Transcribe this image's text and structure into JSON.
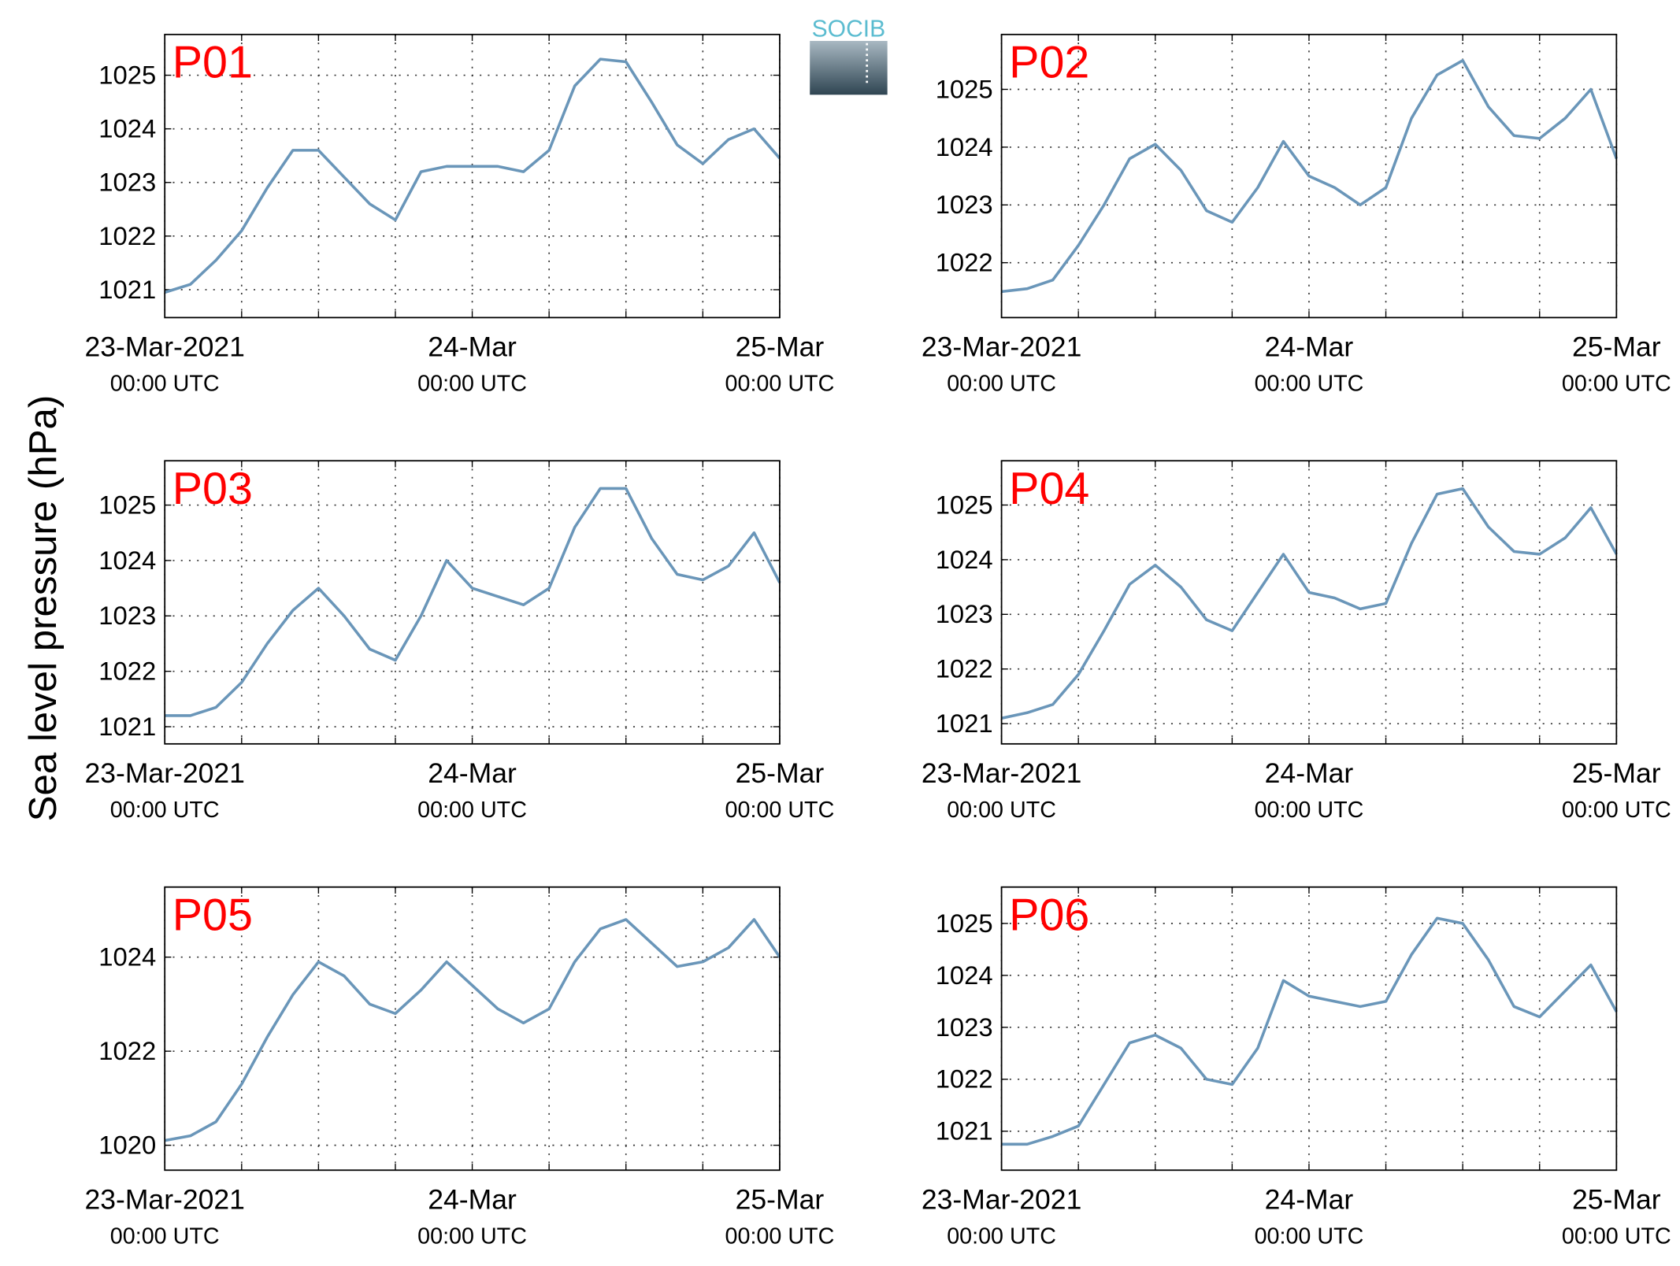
{
  "ylabel": "Sea level pressure (hPa)",
  "logo": "SOCIB",
  "chart_data": [
    {
      "type": "line",
      "title": "P01",
      "color": "#6a96b9",
      "grid": true,
      "x": [
        "2021-03-23T00:00",
        "2021-03-23T02:00",
        "2021-03-23T04:00",
        "2021-03-23T06:00",
        "2021-03-23T08:00",
        "2021-03-23T10:00",
        "2021-03-23T12:00",
        "2021-03-23T14:00",
        "2021-03-23T16:00",
        "2021-03-23T18:00",
        "2021-03-23T20:00",
        "2021-03-23T22:00",
        "2021-03-24T00:00",
        "2021-03-24T02:00",
        "2021-03-24T04:00",
        "2021-03-24T06:00",
        "2021-03-24T08:00",
        "2021-03-24T10:00",
        "2021-03-24T12:00",
        "2021-03-24T14:00",
        "2021-03-24T16:00",
        "2021-03-24T18:00",
        "2021-03-24T20:00",
        "2021-03-24T22:00",
        "2021-03-25T00:00"
      ],
      "values": [
        1020.95,
        1021.1,
        1021.55,
        1022.1,
        1022.9,
        1023.6,
        1023.6,
        1023.1,
        1022.6,
        1022.3,
        1023.2,
        1023.3,
        1023.3,
        1023.3,
        1023.2,
        1023.6,
        1024.8,
        1025.3,
        1025.25,
        1024.5,
        1023.7,
        1023.35,
        1023.8,
        1024.0,
        1023.45
      ],
      "xlim": [
        "2021-03-23T00:00",
        "2021-03-25T00:00"
      ],
      "xticks": [
        {
          "value": "2021-03-23T00:00",
          "label": "23-Mar-2021",
          "sublabel": "00:00 UTC"
        },
        "2021-03-23T06:00",
        "2021-03-23T12:00",
        "2021-03-23T18:00",
        {
          "value": "2021-03-24T00:00",
          "label": "24-Mar",
          "sublabel": "00:00 UTC"
        },
        "2021-03-24T06:00",
        "2021-03-24T12:00",
        "2021-03-24T18:00",
        {
          "value": "2021-03-25T00:00",
          "label": "25-Mar",
          "sublabel": "00:00 UTC"
        }
      ],
      "ylim": [
        1020.48,
        1025.76
      ],
      "yticks": [
        1021,
        1022,
        1023,
        1024,
        1025
      ]
    },
    {
      "type": "line",
      "title": "P02",
      "color": "#6a96b9",
      "grid": true,
      "x": [
        "2021-03-23T00:00",
        "2021-03-23T02:00",
        "2021-03-23T04:00",
        "2021-03-23T06:00",
        "2021-03-23T08:00",
        "2021-03-23T10:00",
        "2021-03-23T12:00",
        "2021-03-23T14:00",
        "2021-03-23T16:00",
        "2021-03-23T18:00",
        "2021-03-23T20:00",
        "2021-03-23T22:00",
        "2021-03-24T00:00",
        "2021-03-24T02:00",
        "2021-03-24T04:00",
        "2021-03-24T06:00",
        "2021-03-24T08:00",
        "2021-03-24T10:00",
        "2021-03-24T12:00",
        "2021-03-24T14:00",
        "2021-03-24T16:00",
        "2021-03-24T18:00",
        "2021-03-24T20:00",
        "2021-03-24T22:00",
        "2021-03-25T00:00"
      ],
      "values": [
        1021.5,
        1021.55,
        1021.7,
        1022.3,
        1023.0,
        1023.8,
        1024.05,
        1023.6,
        1022.9,
        1022.7,
        1023.3,
        1024.1,
        1023.5,
        1023.3,
        1023.0,
        1023.3,
        1024.5,
        1025.25,
        1025.5,
        1024.7,
        1024.2,
        1024.15,
        1024.5,
        1025.0,
        1023.8
      ],
      "xlim": [
        "2021-03-23T00:00",
        "2021-03-25T00:00"
      ],
      "xticks": [
        {
          "value": "2021-03-23T00:00",
          "label": "23-Mar-2021",
          "sublabel": "00:00 UTC"
        },
        "2021-03-23T06:00",
        "2021-03-23T12:00",
        "2021-03-23T18:00",
        {
          "value": "2021-03-24T00:00",
          "label": "24-Mar",
          "sublabel": "00:00 UTC"
        },
        "2021-03-24T06:00",
        "2021-03-24T12:00",
        "2021-03-24T18:00",
        {
          "value": "2021-03-25T00:00",
          "label": "25-Mar",
          "sublabel": "00:00 UTC"
        }
      ],
      "ylim": [
        1021.05,
        1025.95
      ],
      "yticks": [
        1022,
        1023,
        1024,
        1025
      ]
    },
    {
      "type": "line",
      "title": "P03",
      "color": "#6a96b9",
      "grid": true,
      "x": [
        "2021-03-23T00:00",
        "2021-03-23T02:00",
        "2021-03-23T04:00",
        "2021-03-23T06:00",
        "2021-03-23T08:00",
        "2021-03-23T10:00",
        "2021-03-23T12:00",
        "2021-03-23T14:00",
        "2021-03-23T16:00",
        "2021-03-23T18:00",
        "2021-03-23T20:00",
        "2021-03-23T22:00",
        "2021-03-24T00:00",
        "2021-03-24T02:00",
        "2021-03-24T04:00",
        "2021-03-24T06:00",
        "2021-03-24T08:00",
        "2021-03-24T10:00",
        "2021-03-24T12:00",
        "2021-03-24T14:00",
        "2021-03-24T16:00",
        "2021-03-24T18:00",
        "2021-03-24T20:00",
        "2021-03-24T22:00",
        "2021-03-25T00:00"
      ],
      "values": [
        1021.2,
        1021.2,
        1021.35,
        1021.8,
        1022.5,
        1023.1,
        1023.5,
        1023.0,
        1022.4,
        1022.2,
        1023.0,
        1024.0,
        1023.5,
        1023.35,
        1023.2,
        1023.5,
        1024.6,
        1025.3,
        1025.3,
        1024.4,
        1023.75,
        1023.65,
        1023.9,
        1024.5,
        1023.6
      ],
      "xlim": [
        "2021-03-23T00:00",
        "2021-03-25T00:00"
      ],
      "xticks": [
        {
          "value": "2021-03-23T00:00",
          "label": "23-Mar-2021",
          "sublabel": "00:00 UTC"
        },
        "2021-03-23T06:00",
        "2021-03-23T12:00",
        "2021-03-23T18:00",
        {
          "value": "2021-03-24T00:00",
          "label": "24-Mar",
          "sublabel": "00:00 UTC"
        },
        "2021-03-24T06:00",
        "2021-03-24T12:00",
        "2021-03-24T18:00",
        {
          "value": "2021-03-25T00:00",
          "label": "25-Mar",
          "sublabel": "00:00 UTC"
        }
      ],
      "ylim": [
        1020.69,
        1025.8
      ],
      "yticks": [
        1021,
        1022,
        1023,
        1024,
        1025
      ]
    },
    {
      "type": "line",
      "title": "P04",
      "color": "#6a96b9",
      "grid": true,
      "x": [
        "2021-03-23T00:00",
        "2021-03-23T02:00",
        "2021-03-23T04:00",
        "2021-03-23T06:00",
        "2021-03-23T08:00",
        "2021-03-23T10:00",
        "2021-03-23T12:00",
        "2021-03-23T14:00",
        "2021-03-23T16:00",
        "2021-03-23T18:00",
        "2021-03-23T20:00",
        "2021-03-23T22:00",
        "2021-03-24T00:00",
        "2021-03-24T02:00",
        "2021-03-24T04:00",
        "2021-03-24T06:00",
        "2021-03-24T08:00",
        "2021-03-24T10:00",
        "2021-03-24T12:00",
        "2021-03-24T14:00",
        "2021-03-24T16:00",
        "2021-03-24T18:00",
        "2021-03-24T20:00",
        "2021-03-24T22:00",
        "2021-03-25T00:00"
      ],
      "values": [
        1021.1,
        1021.2,
        1021.35,
        1021.9,
        1022.7,
        1023.55,
        1023.9,
        1023.5,
        1022.9,
        1022.7,
        1023.4,
        1024.1,
        1023.4,
        1023.3,
        1023.1,
        1023.2,
        1024.3,
        1025.2,
        1025.3,
        1024.6,
        1024.15,
        1024.1,
        1024.4,
        1024.95,
        1024.1
      ],
      "xlim": [
        "2021-03-23T00:00",
        "2021-03-25T00:00"
      ],
      "xticks": [
        {
          "value": "2021-03-23T00:00",
          "label": "23-Mar-2021",
          "sublabel": "00:00 UTC"
        },
        "2021-03-23T06:00",
        "2021-03-23T12:00",
        "2021-03-23T18:00",
        {
          "value": "2021-03-24T00:00",
          "label": "24-Mar",
          "sublabel": "00:00 UTC"
        },
        "2021-03-24T06:00",
        "2021-03-24T12:00",
        "2021-03-24T18:00",
        {
          "value": "2021-03-25T00:00",
          "label": "25-Mar",
          "sublabel": "00:00 UTC"
        }
      ],
      "ylim": [
        1020.63,
        1025.81
      ],
      "yticks": [
        1021,
        1022,
        1023,
        1024,
        1025
      ]
    },
    {
      "type": "line",
      "title": "P05",
      "color": "#6a96b9",
      "grid": true,
      "x": [
        "2021-03-23T00:00",
        "2021-03-23T02:00",
        "2021-03-23T04:00",
        "2021-03-23T06:00",
        "2021-03-23T08:00",
        "2021-03-23T10:00",
        "2021-03-23T12:00",
        "2021-03-23T14:00",
        "2021-03-23T16:00",
        "2021-03-23T18:00",
        "2021-03-23T20:00",
        "2021-03-23T22:00",
        "2021-03-24T00:00",
        "2021-03-24T02:00",
        "2021-03-24T04:00",
        "2021-03-24T06:00",
        "2021-03-24T08:00",
        "2021-03-24T10:00",
        "2021-03-24T12:00",
        "2021-03-24T14:00",
        "2021-03-24T16:00",
        "2021-03-24T18:00",
        "2021-03-24T20:00",
        "2021-03-24T22:00",
        "2021-03-25T00:00"
      ],
      "values": [
        1020.1,
        1020.2,
        1020.5,
        1021.3,
        1022.3,
        1023.2,
        1023.9,
        1023.6,
        1023.0,
        1022.8,
        1023.3,
        1023.9,
        1023.4,
        1022.9,
        1022.6,
        1022.9,
        1023.9,
        1024.6,
        1024.8,
        1024.3,
        1023.8,
        1023.9,
        1024.2,
        1024.8,
        1024.0
      ],
      "xlim": [
        "2021-03-23T00:00",
        "2021-03-25T00:00"
      ],
      "xticks": [
        {
          "value": "2021-03-23T00:00",
          "label": "23-Mar-2021",
          "sublabel": "00:00 UTC"
        },
        "2021-03-23T06:00",
        "2021-03-23T12:00",
        "2021-03-23T18:00",
        {
          "value": "2021-03-24T00:00",
          "label": "24-Mar",
          "sublabel": "00:00 UTC"
        },
        "2021-03-24T06:00",
        "2021-03-24T12:00",
        "2021-03-24T18:00",
        {
          "value": "2021-03-25T00:00",
          "label": "25-Mar",
          "sublabel": "00:00 UTC"
        }
      ],
      "ylim": [
        1019.47,
        1025.49
      ],
      "yticks": [
        1020,
        1022,
        1024
      ]
    },
    {
      "type": "line",
      "title": "P06",
      "color": "#6a96b9",
      "grid": true,
      "x": [
        "2021-03-23T00:00",
        "2021-03-23T02:00",
        "2021-03-23T04:00",
        "2021-03-23T06:00",
        "2021-03-23T08:00",
        "2021-03-23T10:00",
        "2021-03-23T12:00",
        "2021-03-23T14:00",
        "2021-03-23T16:00",
        "2021-03-23T18:00",
        "2021-03-23T20:00",
        "2021-03-23T22:00",
        "2021-03-24T00:00",
        "2021-03-24T02:00",
        "2021-03-24T04:00",
        "2021-03-24T06:00",
        "2021-03-24T08:00",
        "2021-03-24T10:00",
        "2021-03-24T12:00",
        "2021-03-24T14:00",
        "2021-03-24T16:00",
        "2021-03-24T18:00",
        "2021-03-24T20:00",
        "2021-03-24T22:00",
        "2021-03-25T00:00"
      ],
      "values": [
        1020.75,
        1020.75,
        1020.9,
        1021.1,
        1021.9,
        1022.7,
        1022.85,
        1022.6,
        1022.0,
        1021.9,
        1022.6,
        1023.9,
        1023.6,
        1023.5,
        1023.4,
        1023.5,
        1024.4,
        1025.1,
        1025.0,
        1024.3,
        1023.4,
        1023.2,
        1023.7,
        1024.2,
        1023.3
      ],
      "xlim": [
        "2021-03-23T00:00",
        "2021-03-25T00:00"
      ],
      "xticks": [
        {
          "value": "2021-03-23T00:00",
          "label": "23-Mar-2021",
          "sublabel": "00:00 UTC"
        },
        "2021-03-23T06:00",
        "2021-03-23T12:00",
        "2021-03-23T18:00",
        {
          "value": "2021-03-24T00:00",
          "label": "24-Mar",
          "sublabel": "00:00 UTC"
        },
        "2021-03-24T06:00",
        "2021-03-24T12:00",
        "2021-03-24T18:00",
        {
          "value": "2021-03-25T00:00",
          "label": "25-Mar",
          "sublabel": "00:00 UTC"
        }
      ],
      "ylim": [
        1020.25,
        1025.7
      ],
      "yticks": [
        1021,
        1022,
        1023,
        1024,
        1025
      ]
    }
  ]
}
